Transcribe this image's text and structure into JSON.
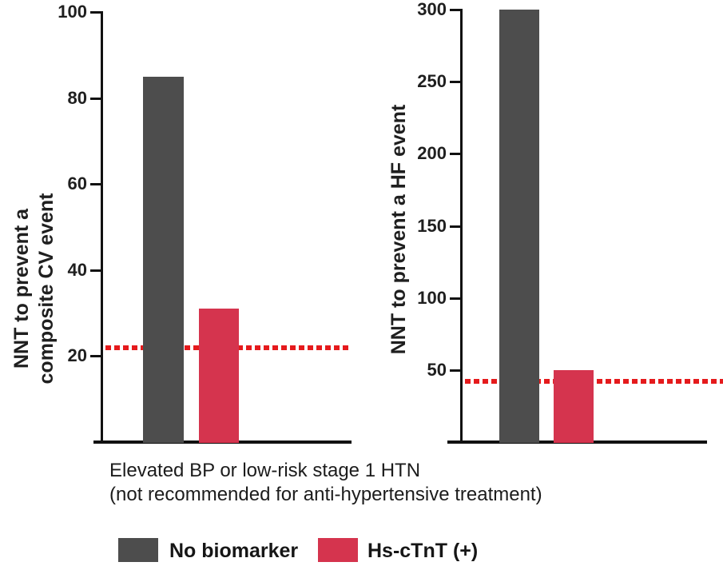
{
  "chart_data": [
    {
      "type": "bar",
      "ylabel_lines": [
        "NNT to prevent a",
        "composite CV event"
      ],
      "categories": [
        "No biomarker",
        "Hs-cTnT (+)"
      ],
      "values": [
        85,
        31
      ],
      "ylim": [
        0,
        100
      ],
      "yticks": [
        20,
        40,
        60,
        80,
        100
      ],
      "reference_line": 22,
      "grid": false
    },
    {
      "type": "bar",
      "ylabel_lines": [
        "NNT to prevent a HF event"
      ],
      "categories": [
        "No biomarker",
        "Hs-cTnT (+)"
      ],
      "values": [
        300,
        50
      ],
      "ylim": [
        0,
        300
      ],
      "yticks": [
        50,
        100,
        150,
        200,
        250,
        300
      ],
      "reference_line": 42,
      "grid": false
    }
  ],
  "caption": {
    "line1": "Elevated BP or low-risk stage 1 HTN",
    "line2": "(not recommended for anti-hypertensive treatment)"
  },
  "legend": {
    "items": [
      {
        "label": "No biomarker",
        "color": "#4d4d4d"
      },
      {
        "label": "Hs-cTnT (+)",
        "color": "#d5344e"
      }
    ],
    "position": "bottom"
  },
  "colors": {
    "axis": "#111111",
    "reference_line": "#e51a1c",
    "bar_gray": "#4d4d4d",
    "bar_crimson": "#d5344e"
  }
}
